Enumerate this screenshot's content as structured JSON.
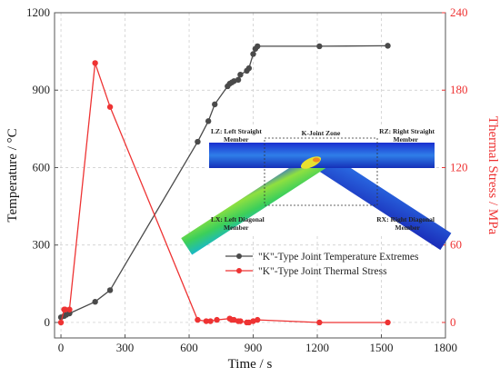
{
  "chart_data": {
    "type": "line",
    "xlabel": "Time / s",
    "ylabel_left": "Temperature / °C",
    "ylabel_right": "Thermal Stress / MPa",
    "xlim": [
      -30,
      1800
    ],
    "ylim_left": [
      -60,
      1200
    ],
    "ylim_right": [
      -12,
      240
    ],
    "x_ticks": [
      0,
      300,
      600,
      900,
      1200,
      1500,
      1800
    ],
    "y_left_ticks": [
      0,
      300,
      600,
      900,
      1200
    ],
    "y_right_ticks": [
      0,
      60,
      120,
      180,
      240
    ],
    "grid": true,
    "legend_position": "lower-right",
    "colors": {
      "temperature": "#4a4a4a",
      "stress": "#ee3333",
      "right_axis": "#ee3333"
    },
    "series": [
      {
        "name": "\"K\"-Type Joint Temperature Extremes",
        "axis": "left",
        "x": [
          0,
          15,
          25,
          40,
          160,
          230,
          640,
          690,
          720,
          780,
          790,
          800,
          810,
          830,
          840,
          870,
          880,
          900,
          910,
          920,
          1210,
          1530
        ],
        "y": [
          20,
          25,
          30,
          35,
          80,
          125,
          700,
          780,
          845,
          915,
          925,
          930,
          935,
          940,
          960,
          975,
          985,
          1040,
          1060,
          1070,
          1070,
          1072
        ]
      },
      {
        "name": "\"K\"-Type Joint Thermal Stress",
        "axis": "right",
        "x": [
          0,
          15,
          20,
          40,
          160,
          230,
          640,
          680,
          700,
          730,
          790,
          800,
          810,
          830,
          840,
          870,
          880,
          900,
          920,
          1210,
          1530
        ],
        "y": [
          0,
          10,
          10,
          10,
          201,
          167,
          2,
          1,
          1,
          2,
          3,
          2,
          2,
          1,
          1,
          0,
          0,
          1,
          2,
          0,
          0
        ]
      }
    ],
    "inset": {
      "title": "K-Joint Zone",
      "labels": [
        "LZ: Left Straight Member",
        "RZ: Right Straight Member",
        "LX: Left Diagonal Member",
        "RX: Right Diagonal Member"
      ]
    }
  }
}
